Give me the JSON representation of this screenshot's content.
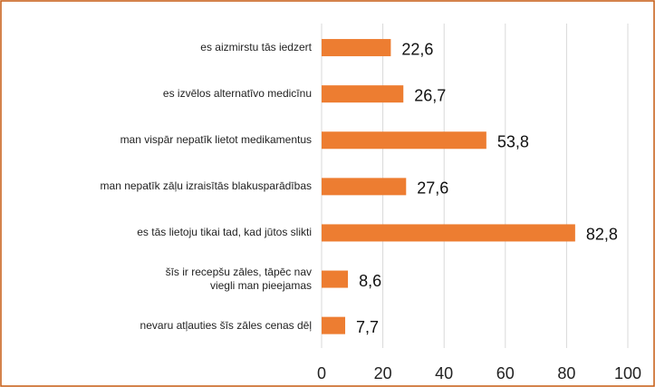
{
  "chart_data": {
    "type": "bar",
    "orientation": "horizontal",
    "categories": [
      "es aizmirstu tās iedzert",
      "es izvēlos alternatīvo medicīnu",
      "man vispār nepatīk lietot medikamentus",
      "man nepatīk zāļu izraisītās blakusparādības",
      "es tās lietoju tikai tad, kad jūtos slikti",
      "šīs ir recepšu zāles, tāpēc nav viegli man pieejamas",
      "nevaru atļauties šīs zāles cenas dēļ"
    ],
    "values": [
      22.6,
      26.7,
      53.8,
      27.6,
      82.8,
      8.6,
      7.7
    ],
    "value_labels": [
      "22,6",
      "26,7",
      "53,8",
      "27,6",
      "82,8",
      "8,6",
      "7,7"
    ],
    "color": "#ed7d31",
    "xlim": [
      0,
      100
    ],
    "xticks": [
      0,
      20,
      40,
      60,
      80,
      100
    ],
    "grid": true
  }
}
